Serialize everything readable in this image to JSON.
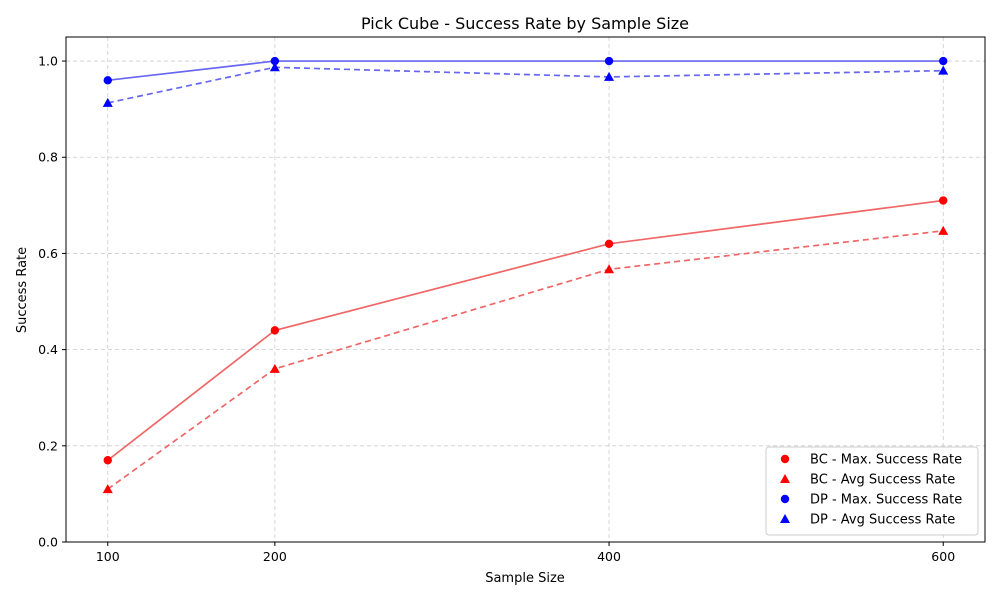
{
  "chart_data": {
    "type": "line",
    "title": "Pick Cube - Success Rate by Sample Size",
    "xlabel": "Sample Size",
    "ylabel": "Success Rate",
    "x": [
      100,
      200,
      400,
      600
    ],
    "x_ticks": [
      "100",
      "200",
      "400",
      "600"
    ],
    "y_ticks": [
      "0.0",
      "0.2",
      "0.4",
      "0.6",
      "0.8",
      "1.0"
    ],
    "xlim": [
      75,
      625
    ],
    "ylim": [
      0,
      1.05
    ],
    "grid": true,
    "legend_position": "lower-right",
    "series": [
      {
        "name": "BC - Max. Success Rate",
        "values": [
          0.17,
          0.44,
          0.62,
          0.71
        ],
        "color": "#ff0000",
        "line_color": "#f06666",
        "marker": "circle",
        "dash": "solid"
      },
      {
        "name": "BC - Avg Success Rate",
        "values": [
          0.11,
          0.36,
          0.567,
          0.647
        ],
        "color": "#ff0000",
        "line_color": "#f06666",
        "marker": "triangle",
        "dash": "dashed"
      },
      {
        "name": "DP - Max. Success Rate",
        "values": [
          0.96,
          1.0,
          1.0,
          1.0
        ],
        "color": "#0000ff",
        "line_color": "#6666f0",
        "marker": "circle",
        "dash": "solid"
      },
      {
        "name": "DP - Avg Success Rate",
        "values": [
          0.913,
          0.987,
          0.967,
          0.98
        ],
        "color": "#0000ff",
        "line_color": "#6666f0",
        "marker": "triangle",
        "dash": "dashed"
      }
    ]
  }
}
